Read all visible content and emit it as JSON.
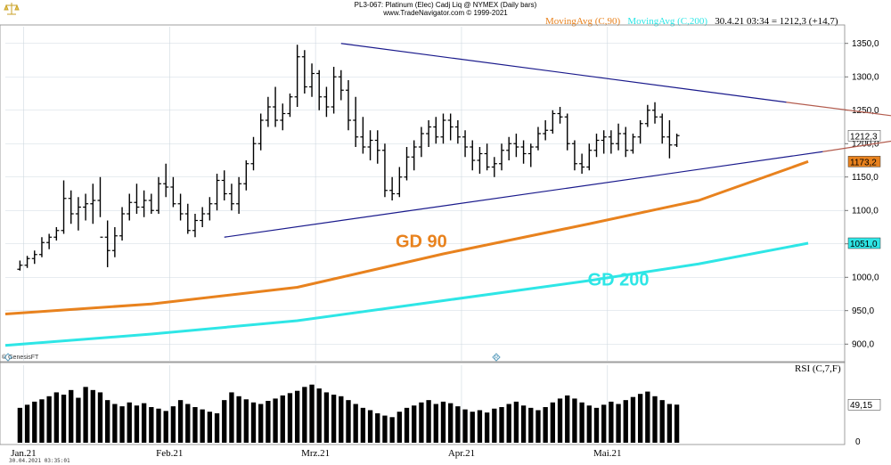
{
  "header": {
    "title": "PL3-067:  Platinum (Elec) Cadj Liq @ NYMEX  (Daily bars)",
    "copyright": "www.TradeNavigator.com © 1999-2021"
  },
  "legend": {
    "ma90_label": "MovingAvg (C,90)",
    "ma200_label": "MovingAvg (C,200)",
    "quote": "30.4.21 03:34 = 1212,3 (+14,7)"
  },
  "rsi_label": "RSI (C,7,F)",
  "genesis": "© GenesisFT",
  "footer_timestamp": "30.04.2021 03:35:01",
  "colors": {
    "bars": "#000000",
    "ma90": "#e8821e",
    "ma200": "#2ee6e6",
    "trend": "#1a1a8c",
    "trend_ext": "#b35c4e",
    "grid": "#cfd8e0",
    "rsi": "#000000"
  },
  "chart_data": [
    {
      "type": "ohlc",
      "title": "PL3-067:  Platinum (Elec) Cadj Liq @ NYMEX  (Daily bars)",
      "y_ticks": [
        900,
        950,
        1000,
        1050,
        1100,
        1150,
        1200,
        1250,
        1300,
        1350
      ],
      "y_tick_labels": [
        "900,0",
        "950,0",
        "1000,0",
        "1050,0",
        "1100,0",
        "1150,0",
        "1200,0",
        "1250,0",
        "1300,0",
        "1350,0"
      ],
      "ylim": [
        875,
        1375
      ],
      "grid": true,
      "x_tick_labels": [
        "Jan.21",
        "Feb.21",
        "Mrz.21",
        "Apr.21",
        "Mai.21"
      ],
      "x_tick_positions": [
        2.5,
        22.5,
        42.5,
        62.5,
        82.5
      ],
      "xlim": [
        0,
        115
      ],
      "bars": [
        [
          1012,
          1025,
          1010,
          1018
        ],
        [
          1018,
          1032,
          1014,
          1028
        ],
        [
          1028,
          1040,
          1020,
          1034
        ],
        [
          1034,
          1060,
          1030,
          1052
        ],
        [
          1052,
          1065,
          1042,
          1060
        ],
        [
          1060,
          1075,
          1055,
          1070
        ],
        [
          1070,
          1145,
          1065,
          1118
        ],
        [
          1118,
          1130,
          1080,
          1095
        ],
        [
          1095,
          1120,
          1070,
          1105
        ],
        [
          1105,
          1125,
          1085,
          1110
        ],
        [
          1110,
          1140,
          1080,
          1115
        ],
        [
          1115,
          1150,
          1090,
          1060
        ],
        [
          1060,
          1085,
          1015,
          1040
        ],
        [
          1040,
          1075,
          1030,
          1062
        ],
        [
          1062,
          1105,
          1055,
          1095
        ],
        [
          1095,
          1125,
          1085,
          1112
        ],
        [
          1112,
          1140,
          1095,
          1105
        ],
        [
          1105,
          1130,
          1090,
          1115
        ],
        [
          1115,
          1125,
          1095,
          1100
        ],
        [
          1100,
          1150,
          1095,
          1140
        ],
        [
          1140,
          1170,
          1120,
          1135
        ],
        [
          1135,
          1150,
          1105,
          1110
        ],
        [
          1110,
          1125,
          1085,
          1095
        ],
        [
          1095,
          1110,
          1065,
          1070
        ],
        [
          1070,
          1095,
          1060,
          1085
        ],
        [
          1085,
          1105,
          1075,
          1095
        ],
        [
          1095,
          1120,
          1085,
          1110
        ],
        [
          1110,
          1155,
          1100,
          1145
        ],
        [
          1145,
          1160,
          1115,
          1125
        ],
        [
          1125,
          1140,
          1100,
          1110
        ],
        [
          1110,
          1150,
          1095,
          1140
        ],
        [
          1140,
          1175,
          1130,
          1170
        ],
        [
          1170,
          1210,
          1160,
          1200
        ],
        [
          1200,
          1245,
          1190,
          1235
        ],
        [
          1235,
          1270,
          1225,
          1255
        ],
        [
          1255,
          1285,
          1225,
          1235
        ],
        [
          1235,
          1260,
          1220,
          1245
        ],
        [
          1245,
          1275,
          1240,
          1270
        ],
        [
          1270,
          1348,
          1255,
          1330
        ],
        [
          1330,
          1340,
          1275,
          1285
        ],
        [
          1285,
          1320,
          1270,
          1305
        ],
        [
          1305,
          1310,
          1250,
          1270
        ],
        [
          1270,
          1285,
          1240,
          1255
        ],
        [
          1255,
          1315,
          1245,
          1300
        ],
        [
          1300,
          1310,
          1265,
          1280
        ],
        [
          1280,
          1295,
          1220,
          1235
        ],
        [
          1235,
          1270,
          1195,
          1210
        ],
        [
          1210,
          1240,
          1185,
          1195
        ],
        [
          1195,
          1220,
          1175,
          1205
        ],
        [
          1205,
          1220,
          1170,
          1190
        ],
        [
          1190,
          1200,
          1120,
          1130
        ],
        [
          1130,
          1150,
          1115,
          1125
        ],
        [
          1125,
          1165,
          1120,
          1150
        ],
        [
          1150,
          1195,
          1145,
          1180
        ],
        [
          1180,
          1205,
          1160,
          1195
        ],
        [
          1195,
          1225,
          1180,
          1215
        ],
        [
          1215,
          1235,
          1195,
          1225
        ],
        [
          1225,
          1240,
          1200,
          1210
        ],
        [
          1210,
          1245,
          1200,
          1235
        ],
        [
          1235,
          1245,
          1205,
          1225
        ],
        [
          1225,
          1235,
          1200,
          1210
        ],
        [
          1210,
          1220,
          1180,
          1195
        ],
        [
          1195,
          1205,
          1160,
          1175
        ],
        [
          1175,
          1195,
          1155,
          1185
        ],
        [
          1185,
          1200,
          1160,
          1165
        ],
        [
          1165,
          1180,
          1150,
          1170
        ],
        [
          1170,
          1200,
          1160,
          1190
        ],
        [
          1190,
          1210,
          1175,
          1200
        ],
        [
          1200,
          1215,
          1180,
          1195
        ],
        [
          1195,
          1205,
          1170,
          1185
        ],
        [
          1185,
          1200,
          1165,
          1195
        ],
        [
          1195,
          1225,
          1190,
          1215
        ],
        [
          1215,
          1235,
          1205,
          1220
        ],
        [
          1220,
          1250,
          1215,
          1245
        ],
        [
          1245,
          1255,
          1230,
          1240
        ],
        [
          1240,
          1245,
          1190,
          1200
        ],
        [
          1200,
          1205,
          1160,
          1170
        ],
        [
          1170,
          1185,
          1155,
          1165
        ],
        [
          1165,
          1200,
          1160,
          1190
        ],
        [
          1190,
          1215,
          1180,
          1205
        ],
        [
          1205,
          1220,
          1185,
          1210
        ],
        [
          1210,
          1220,
          1185,
          1200
        ],
        [
          1200,
          1230,
          1190,
          1215
        ],
        [
          1215,
          1225,
          1180,
          1190
        ],
        [
          1190,
          1215,
          1185,
          1210
        ],
        [
          1210,
          1235,
          1200,
          1230
        ],
        [
          1230,
          1258,
          1225,
          1250
        ],
        [
          1250,
          1262,
          1230,
          1240
        ],
        [
          1240,
          1245,
          1200,
          1210
        ],
        [
          1210,
          1235,
          1178,
          1198
        ],
        [
          1198,
          1215,
          1195,
          1212
        ]
      ],
      "bar_x_start": 2,
      "moving_averages": [
        {
          "name": "MovingAvg (C,90)",
          "x": [
            0,
            20,
            40,
            60,
            80,
            95,
            110
          ],
          "values": [
            945,
            960,
            985,
            1035,
            1080,
            1115,
            1173.2
          ],
          "last_label": "1173,2"
        },
        {
          "name": "MovingAvg (C,200)",
          "x": [
            0,
            20,
            40,
            60,
            80,
            95,
            110
          ],
          "values": [
            898,
            915,
            935,
            965,
            995,
            1020,
            1051.0
          ],
          "last_label": "1051,0"
        }
      ],
      "trendlines": [
        {
          "kind": "upper",
          "x": [
            46,
            107
          ],
          "y": [
            1350,
            1262
          ]
        },
        {
          "kind": "lower",
          "x": [
            30,
            112
          ],
          "y": [
            1060,
            1188
          ]
        },
        {
          "kind": "upper-extension",
          "x": [
            107,
            137
          ],
          "y": [
            1262,
            1220
          ]
        },
        {
          "kind": "lower-extension",
          "x": [
            112,
            137
          ],
          "y": [
            1188,
            1230
          ]
        }
      ],
      "price_labels": {
        "last": "1212,3",
        "ma90": "1173,2",
        "ma200": "1051,0"
      },
      "annotations": [
        {
          "text": "GD 90",
          "x": 57,
          "y": 1045
        },
        {
          "text": "GD 200",
          "x": 84,
          "y": 988
        }
      ]
    },
    {
      "type": "bar",
      "title": "RSI (C,7,F)",
      "ylim": [
        0,
        100
      ],
      "y_tick_labels": [
        "0"
      ],
      "last_label": "49,15",
      "values": [
        45,
        49,
        53,
        56,
        60,
        65,
        62,
        68,
        58,
        72,
        68,
        65,
        55,
        50,
        47,
        52,
        48,
        51,
        46,
        44,
        41,
        47,
        55,
        50,
        46,
        43,
        40,
        38,
        55,
        65,
        60,
        56,
        52,
        50,
        54,
        57,
        61,
        64,
        67,
        72,
        75,
        70,
        65,
        62,
        60,
        55,
        50,
        45,
        42,
        38,
        35,
        33,
        40,
        45,
        48,
        52,
        55,
        50,
        53,
        51,
        47,
        43,
        40,
        42,
        39,
        44,
        46,
        50,
        53,
        48,
        45,
        42,
        46,
        52,
        57,
        61,
        57,
        52,
        48,
        45,
        49,
        53,
        50,
        55,
        59,
        63,
        66,
        60,
        55,
        50,
        49.15
      ]
    }
  ]
}
